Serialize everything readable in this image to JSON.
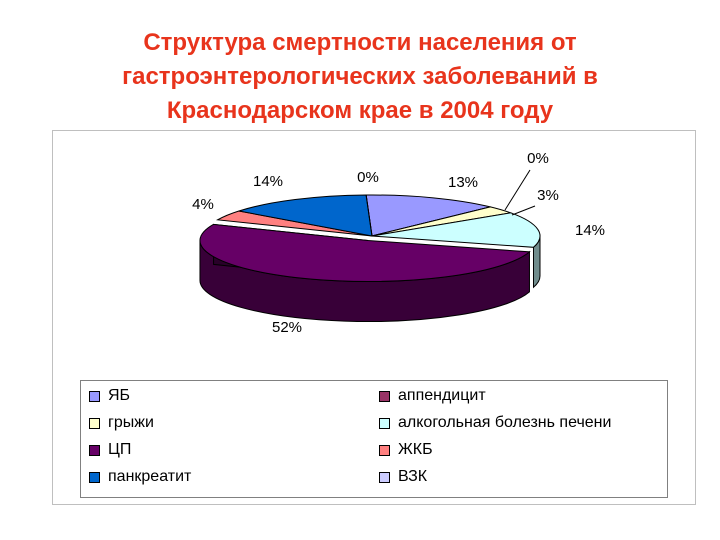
{
  "title_lines": [
    "Структура смертности населения от",
    "гастроэнтерологических заболеваний в",
    "Краснодарском крае в 2004 году"
  ],
  "chart_data": {
    "type": "pie",
    "style": "3d-exploded",
    "legend_position": "bottom",
    "categories": [
      "ЯБ",
      "грыжи",
      "ЦП",
      "панкреатит",
      "аппендицит",
      "алкогольная болезнь печени",
      "ЖКБ",
      "ВЗК"
    ],
    "values": [
      13,
      3,
      52,
      14,
      0,
      14,
      4,
      0
    ],
    "data_labels": [
      "13%",
      "3%",
      "52%",
      "14%",
      "0%",
      "14%",
      "4%",
      "0%"
    ],
    "colors": [
      "#9999ff",
      "#ffffcc",
      "#660066",
      "#0066cc",
      "#993366",
      "#ccffff",
      "#ff8080",
      "#ccccff"
    ],
    "slice_order": [
      "ЯБ",
      "аппендицит",
      "грыжи",
      "алкогольная болезнь печени",
      "ЦП",
      "ЖКБ",
      "панкреатит",
      "ВЗК"
    ]
  }
}
